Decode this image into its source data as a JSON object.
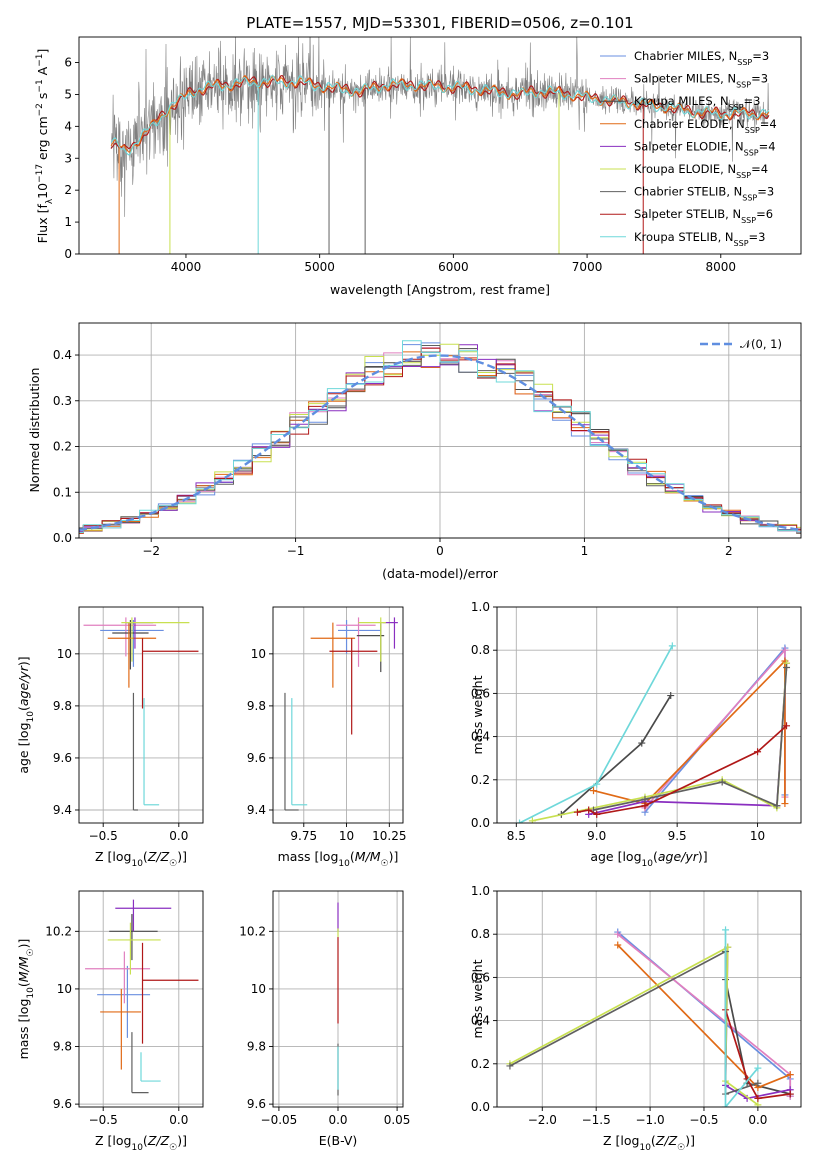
{
  "title": "PLATE=1557, MJD=53301, FIBERID=0506, z=0.101",
  "colors": {
    "Chabrier MILES": "#6a8fe0",
    "Salpeter MILES": "#e07fbf",
    "Kroupa MILES": "#4a4a4a",
    "Chabrier ELODIE": "#e06a16",
    "Salpeter ELODIE": "#8a2fc0",
    "Kroupa ELODIE": "#c8e050",
    "Chabrier STELIB": "#606060",
    "Salpeter STELIB": "#b01818",
    "Kroupa STELIB": "#6fd8da",
    "data": "#808080",
    "normal": "#5f8ee0",
    "grid": "#b0b0b0"
  },
  "chart_data": [
    {
      "id": "spectrum",
      "type": "line",
      "xlabel": "wavelength [Angstrom, rest frame]",
      "ylabel": "Flux [f_λ 10^-17 erg cm^-2 s^-1 A^-1]",
      "xlim": [
        3200,
        8600
      ],
      "ylim": [
        0,
        6.8
      ],
      "xticks": [
        4000,
        5000,
        6000,
        7000,
        8000
      ],
      "yticks": [
        0,
        1,
        2,
        3,
        4,
        5,
        6
      ],
      "grid": false,
      "legend_loc": "right",
      "legend": [
        {
          "base": "Chabrier MILES, N",
          "sub": "SSP",
          "tail": "=3",
          "key": "Chabrier MILES"
        },
        {
          "base": "Salpeter MILES, N",
          "sub": "SSP",
          "tail": "=3",
          "key": "Salpeter MILES"
        },
        {
          "base": "Kroupa MILES, N",
          "sub": "SSP",
          "tail": "=3",
          "key": "Kroupa MILES"
        },
        {
          "base": "Chabrier ELODIE, N",
          "sub": "SSP",
          "tail": "=4",
          "key": "Chabrier ELODIE"
        },
        {
          "base": "Salpeter ELODIE, N",
          "sub": "SSP",
          "tail": "=4",
          "key": "Salpeter ELODIE"
        },
        {
          "base": "Kroupa ELODIE, N",
          "sub": "SSP",
          "tail": "=4",
          "key": "Kroupa ELODIE"
        },
        {
          "base": "Chabrier STELIB, N",
          "sub": "SSP",
          "tail": "=3",
          "key": "Chabrier STELIB"
        },
        {
          "base": "Salpeter STELIB, N",
          "sub": "SSP",
          "tail": "=6",
          "key": "Salpeter STELIB"
        },
        {
          "base": "Kroupa STELIB, N",
          "sub": "SSP",
          "tail": "=3",
          "key": "Kroupa STELIB"
        }
      ],
      "continuum": {
        "x": [
          3450,
          3550,
          3650,
          3750,
          3850,
          3950,
          4050,
          4150,
          4250,
          4350,
          4450,
          4550,
          4650,
          4750,
          4850,
          4950,
          5100,
          5300,
          5500,
          5700,
          5900,
          6100,
          6300,
          6500,
          6600,
          6800,
          7000,
          7200,
          7400,
          7600,
          7800,
          8000,
          8200,
          8350
        ],
        "y": [
          3.5,
          3.2,
          3.6,
          4.0,
          4.5,
          4.8,
          5.1,
          5.2,
          5.3,
          5.3,
          5.4,
          5.4,
          5.4,
          5.4,
          5.4,
          5.3,
          5.2,
          5.1,
          5.3,
          5.3,
          5.25,
          5.2,
          5.1,
          5.0,
          5.1,
          5.05,
          4.9,
          4.8,
          4.7,
          4.6,
          4.45,
          4.4,
          4.4,
          4.4
        ]
      },
      "dips": [
        {
          "x": 3500,
          "y": 0,
          "series": "Chabrier ELODIE"
        },
        {
          "x": 3880,
          "y": 0,
          "series": "Kroupa ELODIE"
        },
        {
          "x": 4540,
          "y": 0,
          "series": "Kroupa STELIB"
        },
        {
          "x": 5070,
          "y": 0,
          "series": "Chabrier STELIB"
        },
        {
          "x": 5340,
          "y": 0,
          "series": "Chabrier STELIB"
        },
        {
          "x": 6790,
          "y": 0,
          "series": "Kroupa ELODIE"
        },
        {
          "x": 7420,
          "y": 0,
          "series": "Salpeter STELIB"
        }
      ]
    },
    {
      "id": "residuals",
      "type": "line",
      "xlabel": "(data-model)/error",
      "ylabel": "Normed distribution",
      "xlim": [
        -2.5,
        2.5
      ],
      "ylim": [
        0,
        0.47
      ],
      "xticks": [
        -2,
        -1,
        0,
        1,
        2
      ],
      "yticks": [
        0.0,
        0.1,
        0.2,
        0.3,
        0.4
      ],
      "grid": true,
      "legend_loc": "top-right",
      "normal_label": "𝒩(0, 1)",
      "bins": 40,
      "bin_range": [
        -2.6,
        2.6
      ]
    },
    {
      "id": "z-age",
      "type": "scatter",
      "xlabel": "Z [log10(Z/Z☉)]",
      "ylabel": "age [log10(age/yr)]",
      "xlim": [
        -0.66,
        0.16
      ],
      "ylim": [
        9.35,
        10.18
      ],
      "xticks": [
        -0.5,
        0.0
      ],
      "yticks": [
        9.4,
        9.6,
        9.8,
        10.0
      ],
      "grid": true,
      "errorbars": [
        {
          "series": "Chabrier MILES",
          "x": -0.3,
          "y": 10.09,
          "xerr": [
            0.22,
            0.2
          ],
          "yerr": [
            0.14,
            0.04
          ]
        },
        {
          "series": "Salpeter MILES",
          "x": -0.35,
          "y": 10.11,
          "xerr": [
            0.28,
            0.2
          ],
          "yerr": [
            0.12,
            0.03
          ]
        },
        {
          "series": "Kroupa MILES",
          "x": -0.32,
          "y": 10.08,
          "xerr": [
            0.12,
            0.12
          ],
          "yerr": [
            0.14,
            0.05
          ]
        },
        {
          "series": "Chabrier ELODIE",
          "x": -0.33,
          "y": 10.06,
          "xerr": [
            0.14,
            0.18
          ],
          "yerr": [
            0.19,
            0.06
          ]
        },
        {
          "series": "Salpeter ELODIE",
          "x": -0.29,
          "y": 10.12,
          "xerr": [
            0.06,
            0.12
          ],
          "yerr": [
            0.1,
            0.02
          ]
        },
        {
          "series": "Kroupa ELODIE",
          "x": -0.31,
          "y": 10.12,
          "xerr": [
            0.07,
            0.38
          ],
          "yerr": [
            0.15,
            0.02
          ]
        },
        {
          "series": "Chabrier STELIB",
          "x": -0.3,
          "y": 9.4,
          "xerr": [
            0.0,
            0.03
          ],
          "yerr": [
            0.0,
            0.45
          ]
        },
        {
          "series": "Salpeter STELIB",
          "x": -0.24,
          "y": 10.01,
          "xerr": [
            0.0,
            0.37
          ],
          "yerr": [
            0.22,
            0.05
          ]
        },
        {
          "series": "Kroupa STELIB",
          "x": -0.23,
          "y": 9.42,
          "xerr": [
            0.0,
            0.1
          ],
          "yerr": [
            0.0,
            0.41
          ]
        }
      ]
    },
    {
      "id": "mass-age",
      "type": "scatter",
      "xlabel": "mass [log10(M/M☉)]",
      "ylabel": "",
      "xlim": [
        9.57,
        10.33
      ],
      "ylim": [
        9.35,
        10.18
      ],
      "xticks": [
        9.75,
        10.0,
        10.25
      ],
      "yticks": [
        9.4,
        9.6,
        9.8,
        10.0
      ],
      "grid": true,
      "errorbars": [
        {
          "series": "Chabrier MILES",
          "x": 10.0,
          "y": 10.09,
          "xerr": [
            0.05,
            0.2
          ],
          "yerr": [
            0.09,
            0.04
          ]
        },
        {
          "series": "Salpeter MILES",
          "x": 10.07,
          "y": 10.11,
          "xerr": [
            0.13,
            0.1
          ],
          "yerr": [
            0.16,
            0.03
          ]
        },
        {
          "series": "Kroupa MILES",
          "x": 10.2,
          "y": 10.07,
          "xerr": [
            0.14,
            0.02
          ],
          "yerr": [
            0.14,
            0.05
          ]
        },
        {
          "series": "Chabrier ELODIE",
          "x": 9.92,
          "y": 10.06,
          "xerr": [
            0.13,
            0.13
          ],
          "yerr": [
            0.19,
            0.06
          ]
        },
        {
          "series": "Salpeter ELODIE",
          "x": 10.28,
          "y": 10.12,
          "xerr": [
            0.07,
            0.02
          ],
          "yerr": [
            0.1,
            0.02
          ]
        },
        {
          "series": "Kroupa ELODIE",
          "x": 10.2,
          "y": 10.12,
          "xerr": [
            0.13,
            0.03
          ],
          "yerr": [
            0.15,
            0.02
          ]
        },
        {
          "series": "Chabrier STELIB",
          "x": 9.64,
          "y": 9.4,
          "xerr": [
            0.0,
            0.08
          ],
          "yerr": [
            0.0,
            0.45
          ]
        },
        {
          "series": "Salpeter STELIB",
          "x": 10.03,
          "y": 10.01,
          "xerr": [
            0.13,
            0.15
          ],
          "yerr": [
            0.32,
            0.05
          ]
        },
        {
          "series": "Kroupa STELIB",
          "x": 9.68,
          "y": 9.42,
          "xerr": [
            0.0,
            0.09
          ],
          "yerr": [
            0.0,
            0.41
          ]
        }
      ]
    },
    {
      "id": "age-weight",
      "type": "line",
      "xlabel": "age [log10(age/yr)]",
      "ylabel": "mass weight",
      "xlim": [
        8.38,
        10.27
      ],
      "ylim": [
        0,
        1.0
      ],
      "xticks": [
        8.5,
        9.0,
        9.5,
        10.0
      ],
      "yticks": [
        0.0,
        0.2,
        0.4,
        0.6,
        0.8,
        1.0
      ],
      "grid": true,
      "series": [
        {
          "name": "Chabrier MILES",
          "x": [
            9.3,
            10.17,
            10.17
          ],
          "y": [
            0.05,
            0.81,
            0.13
          ]
        },
        {
          "name": "Salpeter MILES",
          "x": [
            9.3,
            10.17,
            10.17
          ],
          "y": [
            0.07,
            0.8,
            0.12
          ]
        },
        {
          "name": "Kroupa MILES",
          "x": [
            8.78,
            9.28,
            9.46
          ],
          "y": [
            0.04,
            0.37,
            0.59
          ]
        },
        {
          "name": "Chabrier ELODIE",
          "x": [
            8.98,
            9.3,
            10.17,
            10.17
          ],
          "y": [
            0.15,
            0.09,
            0.75,
            0.09
          ]
        },
        {
          "name": "Salpeter ELODIE",
          "x": [
            8.95,
            9.3,
            10.12,
            10.18
          ],
          "y": [
            0.04,
            0.1,
            0.08,
            0.74
          ]
        },
        {
          "name": "Kroupa ELODIE",
          "x": [
            8.6,
            9.3,
            9.78,
            10.12,
            10.18
          ],
          "y": [
            0.01,
            0.12,
            0.2,
            0.07,
            0.74
          ]
        },
        {
          "name": "Chabrier STELIB",
          "x": [
            8.98,
            9.3,
            9.78,
            10.12,
            10.18
          ],
          "y": [
            0.06,
            0.11,
            0.19,
            0.08,
            0.72
          ]
        },
        {
          "name": "Salpeter STELIB",
          "x": [
            8.88,
            8.95,
            9.0,
            9.3,
            10.0,
            10.18
          ],
          "y": [
            0.05,
            0.06,
            0.04,
            0.08,
            0.33,
            0.45
          ]
        },
        {
          "name": "Kroupa STELIB",
          "x": [
            8.52,
            9.0,
            9.47
          ],
          "y": [
            0.0,
            0.18,
            0.82
          ]
        }
      ]
    },
    {
      "id": "z-mass",
      "type": "scatter",
      "xlabel": "Z [log10(Z/Z☉)]",
      "ylabel": "mass [log10(M/M☉)]",
      "xlim": [
        -0.66,
        0.16
      ],
      "ylim": [
        9.59,
        10.34
      ],
      "xticks": [
        -0.5,
        0.0
      ],
      "yticks": [
        9.6,
        9.8,
        10.0,
        10.2
      ],
      "grid": true,
      "errorbars": [
        {
          "series": "Chabrier MILES",
          "x": -0.34,
          "y": 9.98,
          "xerr": [
            0.2,
            0.15
          ],
          "yerr": [
            0.15,
            0.1
          ]
        },
        {
          "series": "Salpeter MILES",
          "x": -0.36,
          "y": 10.07,
          "xerr": [
            0.26,
            0.17
          ],
          "yerr": [
            0.12,
            0.06
          ]
        },
        {
          "series": "Kroupa MILES",
          "x": -0.31,
          "y": 10.2,
          "xerr": [
            0.15,
            0.17
          ],
          "yerr": [
            0.1,
            0.06
          ]
        },
        {
          "series": "Chabrier ELODIE",
          "x": -0.38,
          "y": 9.92,
          "xerr": [
            0.14,
            0.13
          ],
          "yerr": [
            0.2,
            0.08
          ]
        },
        {
          "series": "Salpeter ELODIE",
          "x": -0.3,
          "y": 10.28,
          "xerr": [
            0.12,
            0.25
          ],
          "yerr": [
            0.08,
            0.03
          ]
        },
        {
          "series": "Kroupa ELODIE",
          "x": -0.32,
          "y": 10.17,
          "xerr": [
            0.15,
            0.2
          ],
          "yerr": [
            0.12,
            0.06
          ]
        },
        {
          "series": "Chabrier STELIB",
          "x": -0.31,
          "y": 9.64,
          "xerr": [
            0.0,
            0.11
          ],
          "yerr": [
            0.0,
            0.21
          ]
        },
        {
          "series": "Salpeter STELIB",
          "x": -0.24,
          "y": 10.03,
          "xerr": [
            0.0,
            0.37
          ],
          "yerr": [
            0.22,
            0.13
          ]
        },
        {
          "series": "Kroupa STELIB",
          "x": -0.25,
          "y": 9.68,
          "xerr": [
            0.0,
            0.13
          ],
          "yerr": [
            0.0,
            0.1
          ]
        }
      ]
    },
    {
      "id": "ebv-mass",
      "type": "scatter",
      "xlabel": "E(B-V)",
      "ylabel": "",
      "xlim": [
        -0.055,
        0.055
      ],
      "ylim": [
        9.59,
        10.34
      ],
      "xticks": [
        -0.05,
        0.0,
        0.05
      ],
      "yticks": [
        9.6,
        9.8,
        10.0,
        10.2
      ],
      "grid": true,
      "errorbars": [
        {
          "series": "Salpeter ELODIE",
          "x": 0.0,
          "y": 10.2,
          "xerr": [
            0,
            0
          ],
          "yerr": [
            0.0,
            0.1
          ]
        },
        {
          "series": "Kroupa ELODIE",
          "x": 0.0,
          "y": 10.18,
          "xerr": [
            0,
            0
          ],
          "yerr": [
            0.0,
            0.03
          ]
        },
        {
          "series": "Salpeter STELIB",
          "x": 0.0,
          "y": 9.88,
          "xerr": [
            0,
            0
          ],
          "yerr": [
            0.0,
            0.3
          ]
        },
        {
          "series": "Chabrier STELIB",
          "x": 0.0,
          "y": 9.63,
          "xerr": [
            0,
            0
          ],
          "yerr": [
            0.0,
            0.18
          ]
        },
        {
          "series": "Kroupa STELIB",
          "x": 0.0,
          "y": 9.65,
          "xerr": [
            0,
            0
          ],
          "yerr": [
            0.0,
            0.15
          ]
        }
      ]
    },
    {
      "id": "z-weight",
      "type": "line",
      "xlabel": "Z [log10(Z/Z☉)]",
      "ylabel": "mass weight",
      "xlim": [
        -2.42,
        0.4
      ],
      "ylim": [
        0,
        1.0
      ],
      "xticks": [
        -2.0,
        -1.5,
        -1.0,
        -0.5,
        0.0
      ],
      "yticks": [
        0.0,
        0.2,
        0.4,
        0.6,
        0.8,
        1.0
      ],
      "grid": true,
      "series": [
        {
          "name": "Chabrier MILES",
          "x": [
            -1.3,
            0.3,
            0.3
          ],
          "y": [
            0.81,
            0.13,
            0.05
          ]
        },
        {
          "name": "Salpeter MILES",
          "x": [
            -1.3,
            0.3,
            0.3
          ],
          "y": [
            0.8,
            0.15,
            0.05
          ]
        },
        {
          "name": "Kroupa MILES",
          "x": [
            -0.3,
            -0.1,
            0.3
          ],
          "y": [
            0.59,
            0.11,
            0.06
          ]
        },
        {
          "name": "Chabrier ELODIE",
          "x": [
            -1.3,
            0.0,
            0.3
          ],
          "y": [
            0.75,
            0.09,
            0.15
          ]
        },
        {
          "name": "Salpeter ELODIE",
          "x": [
            -0.28,
            -0.3,
            -0.1,
            0.3
          ],
          "y": [
            0.74,
            0.1,
            0.04,
            0.08
          ]
        },
        {
          "name": "Kroupa ELODIE",
          "x": [
            -2.3,
            -0.28,
            -0.3,
            0.0
          ],
          "y": [
            0.2,
            0.74,
            0.12,
            0.01
          ]
        },
        {
          "name": "Chabrier STELIB",
          "x": [
            -2.3,
            -0.3,
            -0.3,
            0.0
          ],
          "y": [
            0.19,
            0.72,
            0.06,
            0.11
          ]
        },
        {
          "name": "Salpeter STELIB",
          "x": [
            -0.3,
            -0.1,
            0.0,
            0.3
          ],
          "y": [
            0.45,
            0.13,
            0.04,
            0.06
          ]
        },
        {
          "name": "Kroupa STELIB",
          "x": [
            -0.3,
            -0.3,
            0.0
          ],
          "y": [
            0.82,
            0.0,
            0.18
          ]
        }
      ]
    }
  ]
}
